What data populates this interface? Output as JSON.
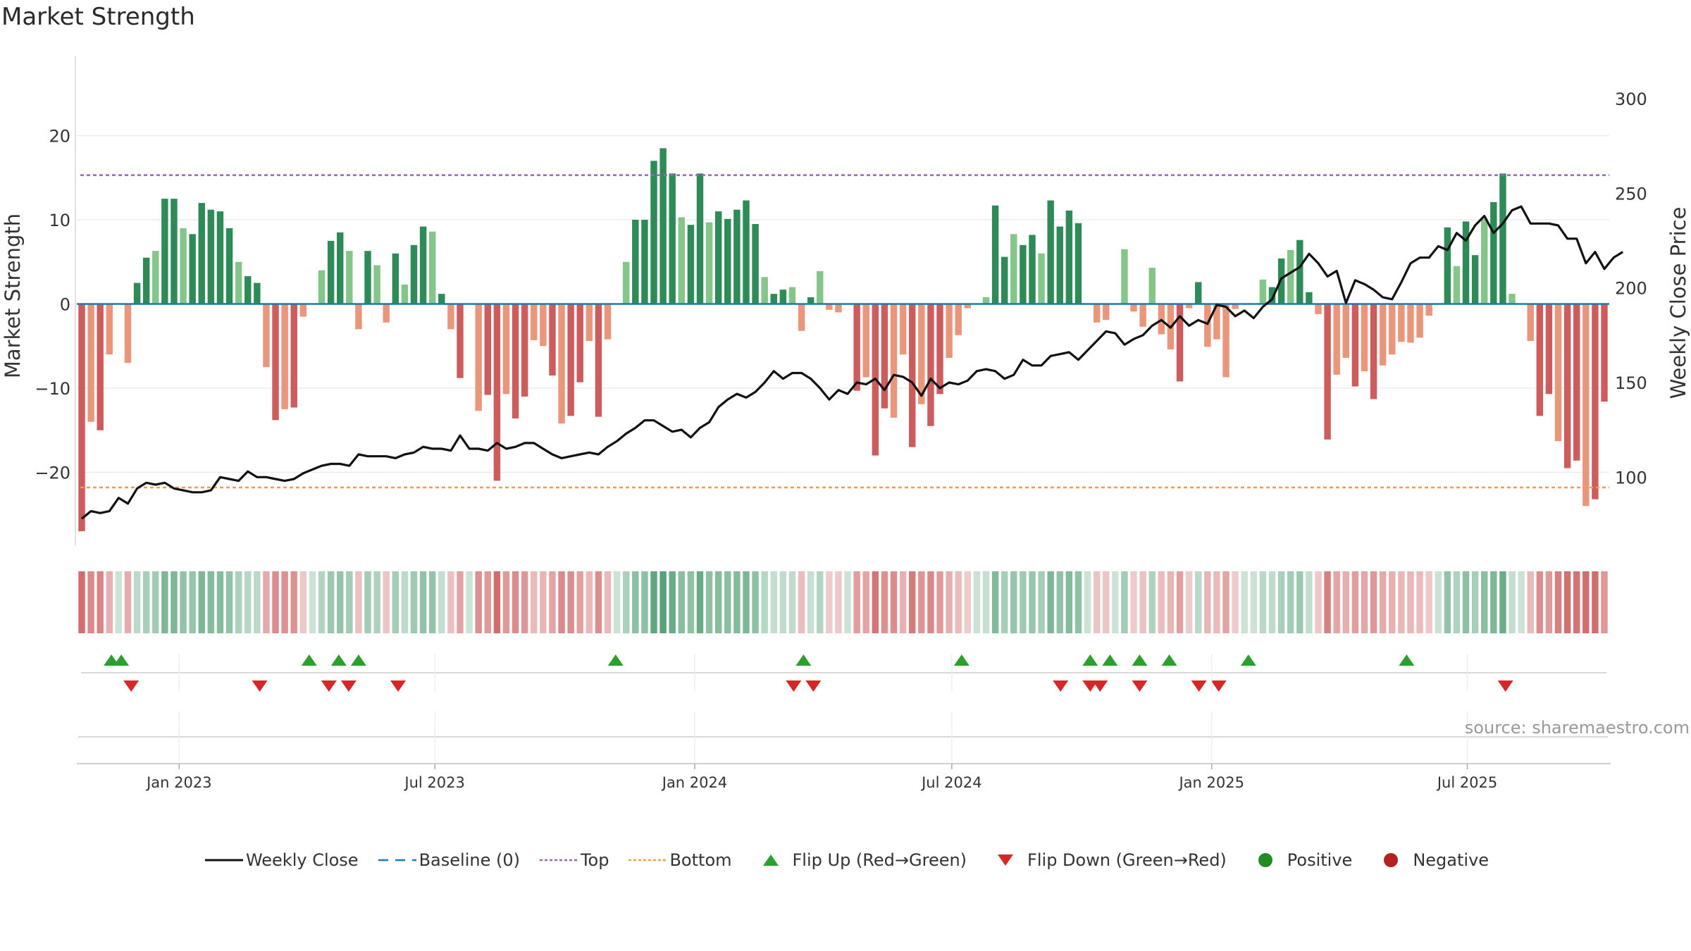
{
  "title": "Market Strength",
  "source": "source: sharemaestro.com",
  "colors": {
    "pos_dark": "#2e8b57",
    "pos_light": "#86c58a",
    "neg_dark": "#cd5c5c",
    "neg_light": "#e9967a",
    "line": "#111111",
    "baseline": "#1f77b4",
    "top": "#9467bd",
    "bottom": "#f39c4f",
    "flip_up": "#2ca02c",
    "flip_down": "#d62728",
    "positive": "#228b22",
    "negative": "#b22222"
  },
  "legend": [
    {
      "key": "close",
      "label": "Weekly Close"
    },
    {
      "key": "baseline",
      "label": "Baseline (0)"
    },
    {
      "key": "top",
      "label": "Top"
    },
    {
      "key": "bottom",
      "label": "Bottom"
    },
    {
      "key": "flipup",
      "label": "Flip Up (Red→Green)"
    },
    {
      "key": "flipdown",
      "label": "Flip Down (Green→Red)"
    },
    {
      "key": "positive",
      "label": "Positive"
    },
    {
      "key": "negative",
      "label": "Negative"
    }
  ],
  "chart_data": {
    "type": "bar",
    "ylabel_left": "Market Strength",
    "ylabel_right": "Weekly Close Price",
    "ylim_left": [
      -28,
      29
    ],
    "ylim_right": [
      68,
      325
    ],
    "yticks_left": [
      20,
      10,
      0,
      -10,
      -20
    ],
    "ytick_labels_left": [
      "20",
      "10",
      "0",
      "−10",
      "−20"
    ],
    "yticks_right": [
      300,
      250,
      200,
      150,
      100
    ],
    "top_line": 15.3,
    "bottom_line": -21.8,
    "x_start": "2022-10-24",
    "x_end": "2025-10-06",
    "xticks": [
      {
        "date": "2023-01-01",
        "label": "Jan 2023"
      },
      {
        "date": "2023-07-01",
        "label": "Jul 2023"
      },
      {
        "date": "2024-01-01",
        "label": "Jan 2024"
      },
      {
        "date": "2024-07-01",
        "label": "Jul 2024"
      },
      {
        "date": "2025-01-01",
        "label": "Jan 2025"
      },
      {
        "date": "2025-07-01",
        "label": "Jul 2025"
      }
    ],
    "strength": [
      -27,
      -14,
      -15,
      -6,
      0,
      -7,
      2.5,
      5.5,
      6.3,
      12.5,
      12.5,
      9,
      8.3,
      12,
      11.2,
      11,
      9,
      5,
      3.3,
      2.5,
      -7.5,
      -13.8,
      -12.5,
      -12.3,
      -1.5,
      0,
      4,
      7.5,
      8.5,
      6.3,
      -3,
      6.3,
      4.6,
      -2.2,
      6,
      2.3,
      7,
      9.2,
      8.6,
      1.2,
      -3,
      -8.8,
      0,
      -12.7,
      -10.8,
      -21,
      -10.7,
      -13.6,
      -11,
      -4.3,
      -5,
      -8.5,
      -14.2,
      -13.3,
      -9.3,
      -4.4,
      -13.4,
      -4.2,
      0,
      5,
      10,
      10,
      17,
      18.5,
      15.5,
      10.3,
      9.4,
      15.5,
      9.7,
      11,
      10.1,
      11.2,
      12.3,
      9.5,
      3.2,
      1.2,
      1.7,
      2,
      -3.2,
      0.8,
      3.9,
      -0.7,
      -1,
      0,
      -10.3,
      -8.7,
      -18,
      -12.4,
      -13.5,
      -6,
      -17,
      -11.9,
      -14.5,
      -10.7,
      -6.4,
      -3.7,
      -0.5,
      0,
      0.8,
      11.7,
      5.6,
      8.3,
      7,
      8.2,
      6,
      12.3,
      9.2,
      11.1,
      9.6,
      0,
      -2.2,
      -1.9,
      0,
      6.5,
      -0.9,
      -2.7,
      4.3,
      -3.6,
      -5.4,
      -9.2,
      -0.5,
      2.6,
      -5.1,
      -4.2,
      -8.7,
      -0.6,
      0,
      0,
      2.9,
      2,
      5.4,
      6.4,
      7.6,
      1.4,
      -1.2,
      -16.1,
      -8.4,
      -6.4,
      -9.8,
      -8,
      -11.3,
      -7.3,
      -6,
      -4.5,
      -4.6,
      -4,
      -1.4,
      0,
      9.1,
      4.5,
      9.8,
      5.8,
      10.1,
      12.1,
      15.5,
      1.2,
      0,
      -4.4,
      -13.3,
      -10.7,
      -16.3,
      -19.5,
      -18.6,
      -24,
      -23.2,
      -11.6
    ],
    "close": [
      78,
      82,
      81,
      82,
      89,
      86,
      94,
      97,
      96,
      97,
      94,
      93,
      92,
      92,
      93,
      100,
      99,
      98,
      103,
      100,
      100,
      99,
      98,
      99,
      102,
      104,
      106,
      107,
      107,
      106,
      112,
      111,
      111,
      111,
      110,
      112,
      113,
      116,
      115,
      115,
      114,
      122,
      115,
      115,
      114,
      118,
      115,
      116,
      118,
      118,
      115,
      112,
      110,
      111,
      112,
      113,
      112,
      116,
      119,
      123,
      126,
      130,
      130,
      127,
      124,
      125,
      121,
      126,
      129,
      137,
      141,
      144,
      142,
      145,
      150,
      156,
      152,
      155,
      155,
      152,
      147,
      141,
      146,
      144,
      150,
      149,
      152,
      146,
      154,
      153,
      150,
      143,
      152,
      147,
      150,
      149,
      151,
      156,
      157,
      156,
      152,
      154,
      162,
      159,
      159,
      164,
      165,
      166,
      162,
      167,
      172,
      177,
      176,
      170,
      173,
      175,
      180,
      183,
      179,
      185,
      180,
      183,
      181,
      191,
      190,
      185,
      188,
      184,
      190,
      194,
      205,
      208,
      211,
      218,
      213,
      206,
      209,
      192,
      204,
      202,
      199,
      195,
      194,
      203,
      213,
      216,
      216,
      222,
      220,
      229,
      225,
      233,
      238,
      229,
      234,
      241,
      243,
      234,
      234,
      234,
      233,
      226,
      226,
      213,
      219,
      210,
      216,
      219
    ],
    "flip_up": [
      "2022-11-14",
      "2022-11-21",
      "2023-04-03",
      "2023-04-24",
      "2023-05-08",
      "2023-11-06",
      "2024-03-18",
      "2024-07-08",
      "2024-10-07",
      "2024-10-21",
      "2024-11-11",
      "2024-12-02",
      "2025-01-27",
      "2025-05-19"
    ],
    "flip_down": [
      "2022-11-28",
      "2023-02-27",
      "2023-04-17",
      "2023-05-01",
      "2023-06-05",
      "2024-03-11",
      "2024-03-25",
      "2024-09-16",
      "2024-10-07",
      "2024-10-14",
      "2024-11-11",
      "2024-12-23",
      "2025-01-06",
      "2025-07-28"
    ]
  }
}
